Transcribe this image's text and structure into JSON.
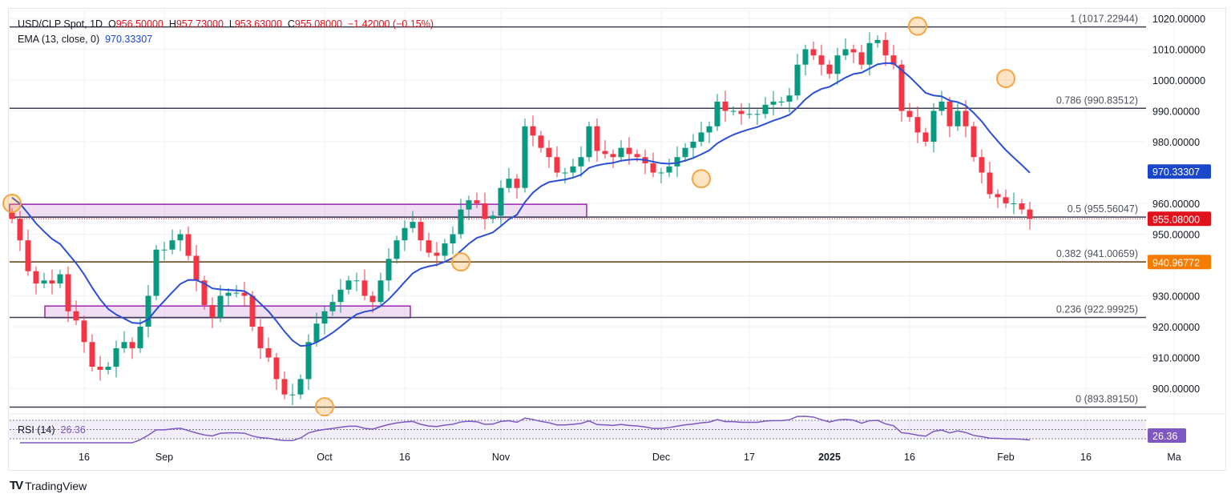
{
  "legend": {
    "symbol": "USD/CLP Spot, 1D",
    "o_label": "O",
    "open": "956.50000",
    "h_label": "H",
    "high": "957.73000",
    "l_label": "L",
    "low": "953.63000",
    "c_label": "C",
    "close": "955.08000",
    "change": "−1.42000 (−0.15%)",
    "ema_label": "EMA (13, close, 0)",
    "ema_value": "970.33307",
    "rsi_label": "RSI (14)",
    "rsi_value": "26.36"
  },
  "brand": "TradingView",
  "chart_data": {
    "type": "candlestick",
    "title": "USD/CLP Spot, 1D",
    "ylim": [
      892,
      1022
    ],
    "y_ticks": [
      "1020.00000",
      "1010.00000",
      "1000.00000",
      "990.00000",
      "980.00000",
      "960.00000",
      "950.00000",
      "930.00000",
      "920.00000",
      "910.00000",
      "900.00000"
    ],
    "y_tick_values": [
      1020,
      1010,
      1000,
      990,
      980,
      960,
      950,
      930,
      920,
      910,
      900
    ],
    "x_ticks": [
      {
        "label": "16",
        "bar": 9
      },
      {
        "label": "Sep",
        "bar": 19
      },
      {
        "label": "Oct",
        "bar": 39
      },
      {
        "label": "16",
        "bar": 49
      },
      {
        "label": "Nov",
        "bar": 61
      },
      {
        "label": "Dec",
        "bar": 81
      },
      {
        "label": "17",
        "bar": 92
      },
      {
        "label": "2025",
        "bar": 102,
        "bold": true
      },
      {
        "label": "16",
        "bar": 112
      },
      {
        "label": "Feb",
        "bar": 124
      },
      {
        "label": "16",
        "bar": 134
      },
      {
        "label": "Ma",
        "bar": 145
      }
    ],
    "closes": [
      955,
      948,
      938,
      934,
      935,
      934,
      937,
      925,
      922,
      915,
      907,
      906,
      907,
      913,
      915,
      913,
      920,
      930,
      945,
      945,
      948,
      950,
      943,
      935,
      927,
      923,
      930,
      931,
      931,
      930,
      920,
      913,
      910,
      903,
      898,
      898,
      903,
      915,
      921,
      925,
      928,
      932,
      935,
      935,
      930,
      928,
      935,
      942,
      948,
      952,
      954,
      948,
      944,
      943,
      947,
      950,
      958,
      961,
      960,
      955,
      956,
      965,
      968,
      965,
      985,
      982,
      978,
      975,
      970,
      970,
      972,
      975,
      985,
      977,
      976,
      975,
      978,
      976,
      975,
      973,
      970,
      970,
      972,
      975,
      978,
      980,
      983,
      985,
      993,
      990,
      990,
      989,
      989,
      989,
      992,
      993,
      993,
      995,
      1005,
      1010,
      1008,
      1005,
      1002,
      1008,
      1010,
      1009,
      1005,
      1012,
      1013,
      1008,
      1005,
      990,
      988,
      983,
      980,
      990,
      993,
      985,
      990,
      985,
      975,
      970,
      963,
      962,
      960,
      960,
      958,
      955
    ],
    "ema_period": 13,
    "ema_value_label": "970.33307",
    "last_price_label": "955.08000",
    "level_label": "940.96772",
    "fib_levels": [
      {
        "ratio": "1",
        "price": 1017.22944,
        "label": "1 (1017.22944)"
      },
      {
        "ratio": "0.786",
        "price": 990.83512,
        "label": "0.786 (990.83512)"
      },
      {
        "ratio": "0.5",
        "price": 955.56047,
        "label": "0.5 (955.56047)"
      },
      {
        "ratio": "0.382",
        "price": 941.00659,
        "label": "0.382 (941.00659)"
      },
      {
        "ratio": "0.236",
        "price": 922.99925,
        "label": "0.236 (922.99925)"
      },
      {
        "ratio": "0",
        "price": 893.8915,
        "label": "0 (893.89150)"
      }
    ],
    "zones": [
      {
        "from_bar": 0,
        "to_bar": 72,
        "low": 955.5,
        "high": 959.7
      },
      {
        "from_bar": 3,
        "to_bar": 50,
        "low": 922.9,
        "high": 926.7
      }
    ],
    "highlights": [
      {
        "bar": 0,
        "price": 960
      },
      {
        "bar": 113,
        "price": 1017.5
      },
      {
        "bar": 124,
        "price": 1000.5
      },
      {
        "bar": 86,
        "price": 968
      },
      {
        "bar": 56,
        "price": 941
      },
      {
        "bar": 39,
        "price": 894
      }
    ],
    "rsi": {
      "period": 14,
      "value": "26.36",
      "levels": [
        70,
        50,
        30
      ]
    },
    "colors": {
      "up": "#089981",
      "down": "#f23645",
      "ema": "#2a4fd6",
      "last": "#e1121b",
      "level": "#f57c00",
      "rsi": "#7e57c2",
      "zone": "#9c27b0",
      "circle": "#f7a440"
    }
  }
}
